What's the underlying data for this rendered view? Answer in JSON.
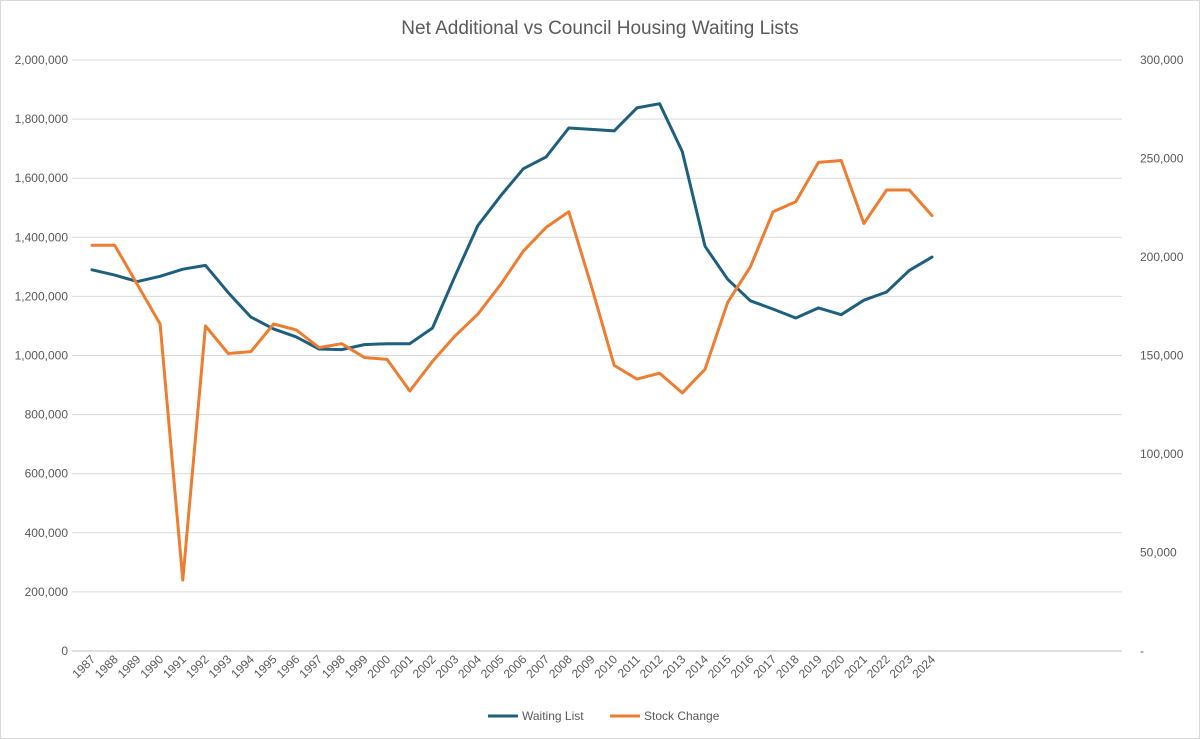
{
  "chart_data": {
    "type": "line",
    "title": "Net Additional vs Council Housing Waiting Lists",
    "categories": [
      "1987",
      "1988",
      "1989",
      "1990",
      "1991",
      "1992",
      "1993",
      "1994",
      "1995",
      "1996",
      "1997",
      "1998",
      "1999",
      "2000",
      "2001",
      "2002",
      "2003",
      "2004",
      "2005",
      "2006",
      "2007",
      "2008",
      "2009",
      "2010",
      "2011",
      "2012",
      "2013",
      "2014",
      "2015",
      "2016",
      "2017",
      "2018",
      "2019",
      "2020",
      "2021",
      "2022",
      "2023",
      "2024"
    ],
    "y_left": {
      "min": 0,
      "max": 2000000,
      "step": 200000,
      "tick_labels": [
        "0",
        "200,000",
        "400,000",
        "600,000",
        "800,000",
        "1,000,000",
        "1,200,000",
        "1,400,000",
        "1,600,000",
        "1,800,000",
        "2,000,000"
      ]
    },
    "y_right": {
      "min": 0,
      "max": 300000,
      "step": 50000,
      "tick_labels": [
        "-",
        "50,000",
        "100,000",
        "150,000",
        "200,000",
        "250,000",
        "300,000"
      ]
    },
    "grid": true,
    "legend_position": "bottom",
    "series": [
      {
        "name": "Waiting List",
        "axis": "left",
        "color": "#1f5f7e",
        "values": [
          1290000,
          1272000,
          1250000,
          1268000,
          1292000,
          1305000,
          1213000,
          1130000,
          1090000,
          1063000,
          1022000,
          1020000,
          1037000,
          1040000,
          1040000,
          1093000,
          1270000,
          1440000,
          1540000,
          1632000,
          1672000,
          1770000,
          1765000,
          1760000,
          1838000,
          1852000,
          1690000,
          1370000,
          1258000,
          1185000,
          1157000,
          1127000,
          1161000,
          1138000,
          1187000,
          1215000,
          1288000,
          1333000
        ]
      },
      {
        "name": "Stock Change",
        "axis": "right",
        "color": "#ed7d31",
        "values": [
          206000,
          206000,
          186000,
          166000,
          36000,
          165000,
          151000,
          152000,
          166000,
          163000,
          154000,
          156000,
          149000,
          148000,
          132000,
          147000,
          160000,
          171000,
          186000,
          203000,
          215000,
          223000,
          185000,
          145000,
          138000,
          141000,
          131000,
          143000,
          177000,
          195000,
          223000,
          228000,
          248000,
          249000,
          217000,
          234000,
          234000,
          221000
        ]
      }
    ]
  }
}
